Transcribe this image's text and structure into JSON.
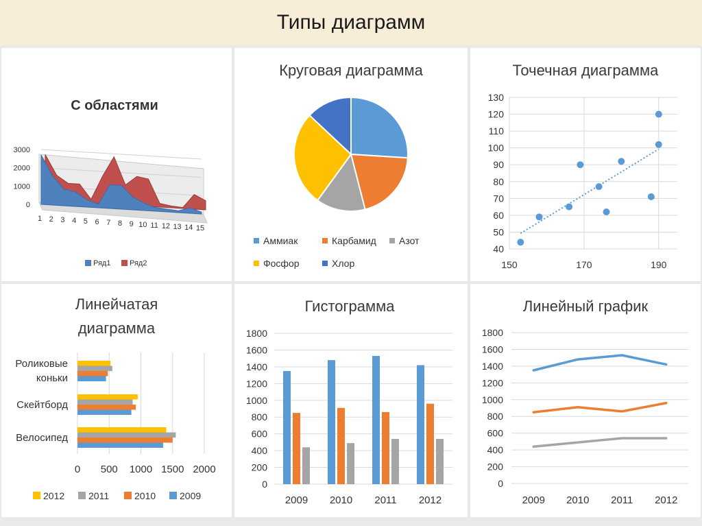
{
  "header": {
    "title": "Типы диаграмм"
  },
  "colors": {
    "blue": "#5b9bd5",
    "orange": "#ed7d31",
    "gray": "#a5a5a5",
    "yellow": "#ffc000",
    "darkblue": "#4472c4",
    "red": "#c0504d",
    "blue3d": "#4f81bd"
  },
  "chart_data": [
    {
      "id": "area",
      "type": "area",
      "title": "С областями",
      "categories": [
        "1",
        "2",
        "3",
        "4",
        "5",
        "6",
        "7",
        "8",
        "9",
        "10",
        "11",
        "12",
        "13",
        "14",
        "15"
      ],
      "series": [
        {
          "name": "Ряд1",
          "values": [
            2700,
            1600,
            900,
            800,
            400,
            200,
            1300,
            1300,
            700,
            400,
            200,
            150,
            100,
            300,
            100
          ]
        },
        {
          "name": "Ряд2",
          "values": [
            2500,
            1400,
            1000,
            1000,
            200,
            1500,
            2600,
            1100,
            1600,
            1500,
            200,
            100,
            50,
            800,
            500
          ]
        }
      ],
      "yticks": [
        "0",
        "1000",
        "2000",
        "3000"
      ],
      "ylim": [
        0,
        3000
      ]
    },
    {
      "id": "pie",
      "type": "pie",
      "title": "Круговая диаграмма",
      "labels": [
        "Аммиак",
        "Карбамид",
        "Азот",
        "Фосфор",
        "Хлор"
      ],
      "values": [
        26,
        20,
        14,
        27,
        13
      ]
    },
    {
      "id": "scatter",
      "type": "scatter",
      "title": "Точечная диаграмма",
      "points": [
        [
          153,
          44
        ],
        [
          158,
          59
        ],
        [
          166,
          65
        ],
        [
          169,
          90
        ],
        [
          174,
          77
        ],
        [
          176,
          62
        ],
        [
          180,
          92
        ],
        [
          188,
          71
        ],
        [
          190,
          102
        ],
        [
          190,
          120
        ]
      ],
      "xlim": [
        150,
        195
      ],
      "ylim": [
        40,
        130
      ],
      "xticks": [
        "150",
        "170",
        "190"
      ],
      "yticks": [
        "40",
        "50",
        "60",
        "70",
        "80",
        "90",
        "100",
        "110",
        "120",
        "130"
      ]
    },
    {
      "id": "hbar",
      "type": "bar",
      "title": "Линейчатая диаграмма",
      "categories": [
        "Роликовые коньки",
        "Скейтборд",
        "Велосипед"
      ],
      "series": [
        {
          "name": "2012",
          "values": [
            520,
            950,
            1400
          ]
        },
        {
          "name": "2011",
          "values": [
            550,
            870,
            1550
          ]
        },
        {
          "name": "2010",
          "values": [
            480,
            920,
            1500
          ]
        },
        {
          "name": "2009",
          "values": [
            450,
            850,
            1350
          ]
        }
      ],
      "xlim": [
        0,
        2000
      ],
      "xticks": [
        "0",
        "500",
        "1000",
        "1500",
        "2000"
      ]
    },
    {
      "id": "columns",
      "type": "bar",
      "title": "Гистограмма",
      "categories": [
        "2009",
        "2010",
        "2011",
        "2012"
      ],
      "series": [
        {
          "values": [
            1350,
            1480,
            1530,
            1420
          ]
        },
        {
          "values": [
            850,
            910,
            860,
            960
          ]
        },
        {
          "values": [
            440,
            490,
            540,
            540
          ]
        }
      ],
      "ylim": [
        0,
        1800
      ],
      "yticks": [
        "0",
        "200",
        "400",
        "600",
        "800",
        "1000",
        "1200",
        "1400",
        "1600",
        "1800"
      ]
    },
    {
      "id": "line",
      "type": "line",
      "title": "Линейный график",
      "categories": [
        "2009",
        "2010",
        "2011",
        "2012"
      ],
      "series": [
        {
          "values": [
            1350,
            1480,
            1530,
            1420
          ]
        },
        {
          "values": [
            850,
            910,
            860,
            960
          ]
        },
        {
          "values": [
            440,
            490,
            540,
            540
          ]
        }
      ],
      "ylim": [
        0,
        1800
      ],
      "yticks": [
        "0",
        "200",
        "400",
        "600",
        "800",
        "1000",
        "1200",
        "1400",
        "1600",
        "1800"
      ]
    }
  ]
}
